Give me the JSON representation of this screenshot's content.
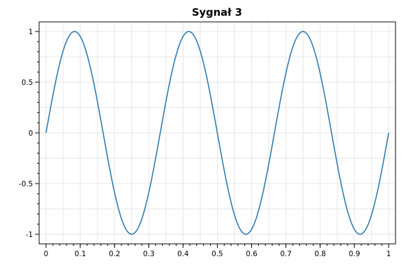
{
  "chart_data": {
    "type": "line",
    "title": "Sygnał 3",
    "xlabel": "",
    "ylabel": "",
    "xlim": [
      0,
      1
    ],
    "ylim": [
      -1,
      1
    ],
    "grid": true,
    "x_ticks": [
      0,
      0.1,
      0.2,
      0.3,
      0.4,
      0.5,
      0.6,
      0.7,
      0.8,
      0.9,
      1
    ],
    "x_tick_labels": [
      "0",
      "0.1",
      "0.2",
      "0.3",
      "0.4",
      "0.5",
      "0.6",
      "0.7",
      "0.8",
      "0.9",
      "1"
    ],
    "y_ticks": [
      1,
      0.5,
      0,
      -0.5,
      -1
    ],
    "y_tick_labels": [
      "1",
      "0.5",
      "0",
      "-0.5",
      "-1"
    ],
    "series": [
      {
        "color": "#2e7bb0",
        "x": [
          0,
          0.0417,
          0.0833,
          0.125,
          0.1667,
          0.2083,
          0.25,
          0.2917,
          0.3333,
          0.375,
          0.4167,
          0.4583,
          0.5,
          0.5417,
          0.5833,
          0.625,
          0.6667,
          0.7083,
          0.75,
          0.7917,
          0.8333,
          0.875,
          0.9167,
          0.9583,
          1
        ],
        "y": [
          0,
          0.707,
          1,
          0.707,
          0,
          -0.707,
          -1,
          -0.707,
          0,
          0.707,
          1,
          0.707,
          0,
          -0.707,
          -1,
          -0.707,
          0,
          0.707,
          1,
          0.707,
          0,
          -0.707,
          -1,
          -0.707,
          0
        ],
        "frequency": 3,
        "amplitude": 1
      }
    ]
  }
}
